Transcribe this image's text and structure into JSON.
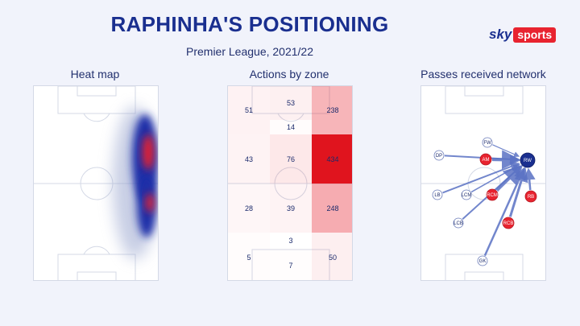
{
  "header": {
    "title": "RAPHINHA'S POSITIONING",
    "subtitle": "Premier League, 2021/22"
  },
  "logo": {
    "sky": "sky",
    "sports": "sports"
  },
  "panels": {
    "heatmap": {
      "title": "Heat map"
    },
    "zones": {
      "title": "Actions by zone",
      "cells": [
        {
          "id": "top-left",
          "value": "51",
          "intensity": 0.08
        },
        {
          "id": "top-mid",
          "value": "53",
          "intensity": 0.09
        },
        {
          "id": "top-mid-box",
          "value": "14",
          "intensity": 0.02
        },
        {
          "id": "top-right",
          "value": "238",
          "intensity": 0.45
        },
        {
          "id": "upper-left",
          "value": "43",
          "intensity": 0.07
        },
        {
          "id": "upper-mid",
          "value": "76",
          "intensity": 0.14
        },
        {
          "id": "upper-right",
          "value": "434",
          "intensity": 1.0
        },
        {
          "id": "lower-left",
          "value": "28",
          "intensity": 0.05
        },
        {
          "id": "lower-mid",
          "value": "39",
          "intensity": 0.07
        },
        {
          "id": "lower-right",
          "value": "248",
          "intensity": 0.5
        },
        {
          "id": "bottom-left",
          "value": "5",
          "intensity": 0.02
        },
        {
          "id": "bottom-mid-top",
          "value": "3",
          "intensity": 0.0
        },
        {
          "id": "bottom-mid",
          "value": "7",
          "intensity": 0.01
        },
        {
          "id": "bottom-right",
          "value": "50",
          "intensity": 0.1
        }
      ]
    },
    "network": {
      "title": "Passes received network",
      "players": [
        {
          "id": "RW",
          "label": "RW",
          "team": "focus"
        },
        {
          "id": "FW",
          "label": "FW",
          "team": "neutral"
        },
        {
          "id": "DP",
          "label": "DP",
          "team": "neutral"
        },
        {
          "id": "AM",
          "label": "AM",
          "team": "red"
        },
        {
          "id": "LB",
          "label": "LB",
          "team": "neutral"
        },
        {
          "id": "LCM",
          "label": "LCM",
          "team": "neutral"
        },
        {
          "id": "RCM",
          "label": "RCM",
          "team": "red"
        },
        {
          "id": "RB",
          "label": "RB",
          "team": "red"
        },
        {
          "id": "LCB",
          "label": "LCB",
          "team": "neutral"
        },
        {
          "id": "RCB",
          "label": "RCB",
          "team": "red"
        },
        {
          "id": "GK",
          "label": "GK",
          "team": "neutral"
        }
      ]
    }
  },
  "colors": {
    "navy": "#1a2f8f",
    "red": "#e8232f",
    "neutral_node": "#ffffff",
    "line": "#d4d9e6",
    "arrow": "#5a72c4"
  }
}
